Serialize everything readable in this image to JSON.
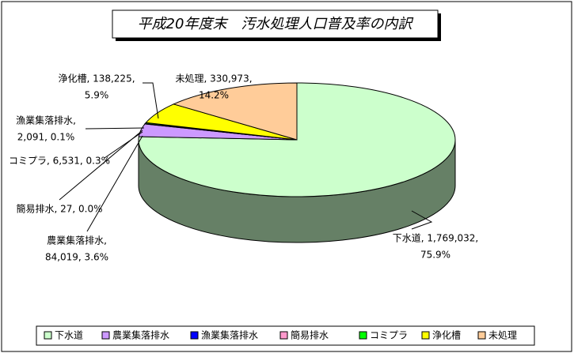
{
  "chart_data": {
    "type": "pie3d",
    "title": "平成20年度末　汚水処理人口普及率の内訳",
    "categories": [
      "下水道",
      "農業集落排水",
      "漁業集落排水",
      "簡易排水",
      "コミプラ",
      "浄化槽",
      "未処理"
    ],
    "values": [
      1769032,
      84019,
      2091,
      27,
      6531,
      138225,
      330973
    ],
    "data_labels": [
      [
        "下水道, 1,769,032,",
        "75.9%"
      ],
      [
        "農業集落排水,",
        "84,019, 3.6%"
      ],
      [
        "漁業集落排水,",
        "2,091, 0.1%"
      ],
      [
        "簡易排水, 27, 0.0%"
      ],
      [
        "コミプラ, 6,531, 0.3%"
      ],
      [
        "浄化槽, 138,225,",
        "5.9%"
      ],
      [
        "未処理, 330,973,",
        "14.2%"
      ]
    ],
    "colors": [
      "#ccffcc",
      "#cc99ff",
      "#0000ff",
      "#ff99cc",
      "#00ff00",
      "#ffff00",
      "#ffcc99"
    ],
    "legend": "bottom"
  }
}
